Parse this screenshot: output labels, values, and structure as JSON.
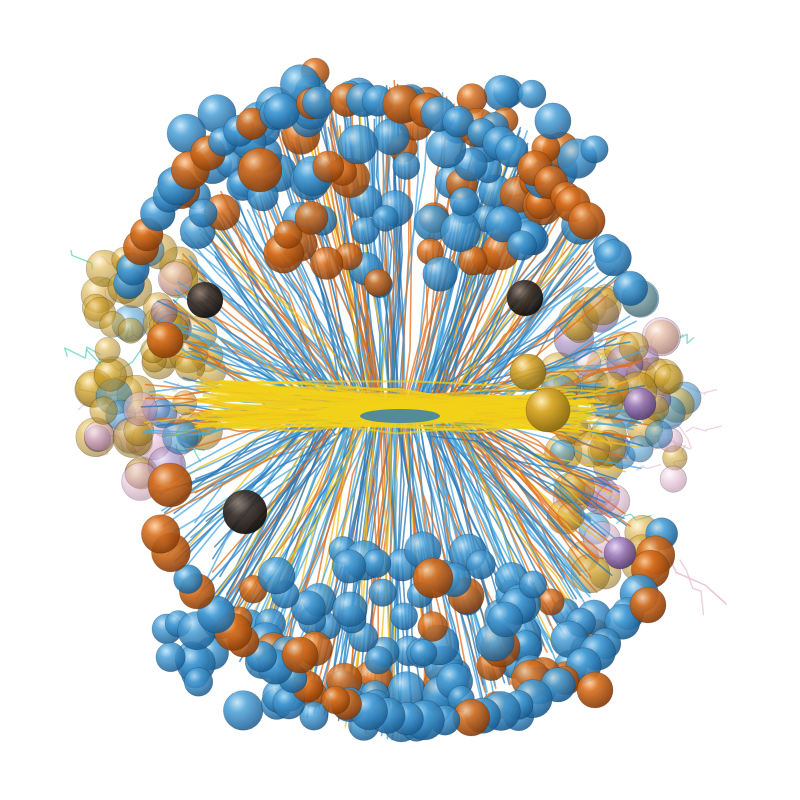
{
  "scene": {
    "subject": "molecular-assembly-render",
    "background": "#ffffff",
    "colors": {
      "blue_head": "#2a7ab8",
      "blue_tail": "#4aa8e0",
      "orange_head": "#c8641a",
      "orange_tail": "#e07020",
      "gold_head": "#c89a2a",
      "gold_tail": "#f0c020",
      "yellow_core": "#f2d21a",
      "dark_head": "#2a2420",
      "teal_tail": "#3cc8a8",
      "pink_tail": "#e8b8d0",
      "purple_head": "#9a7ab8"
    },
    "icons": [
      "sphere-bead",
      "lipid-tail-strand"
    ]
  }
}
